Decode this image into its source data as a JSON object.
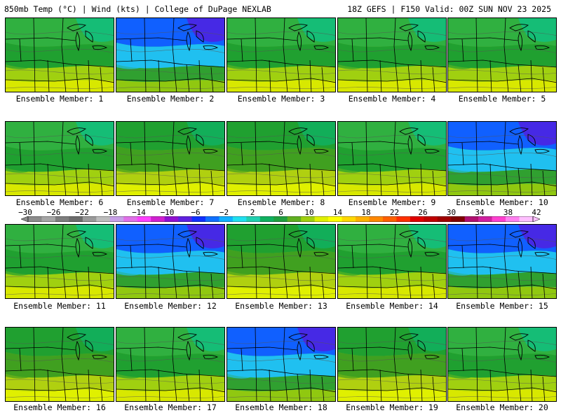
{
  "header": {
    "title": "850mb Temp (°C) | Wind (kts) | College of DuPage NEXLAB",
    "run_info": "18Z GEFS | F150 Valid: 00Z SUN NOV 23 2025"
  },
  "legend": {
    "ticks": [
      "−30",
      "−26",
      "−22",
      "−18",
      "−14",
      "−10",
      "−6",
      "−2",
      "2",
      "6",
      "10",
      "14",
      "18",
      "22",
      "26",
      "30",
      "34",
      "38",
      "42"
    ],
    "colors": [
      "#8c8c8c",
      "#a6a6a6",
      "#7e7e7e",
      "#6c6c6c",
      "#9a9a9a",
      "#bdbdbd",
      "#c8a0e8",
      "#e070e8",
      "#ff40ff",
      "#d020d0",
      "#9010d0",
      "#6020e0",
      "#1030ff",
      "#1070ff",
      "#10b0ff",
      "#20e0f0",
      "#20d0b0",
      "#10b060",
      "#20a040",
      "#60b020",
      "#a0d010",
      "#e0f000",
      "#ffff00",
      "#ffd800",
      "#ffb000",
      "#ff8800",
      "#ff6000",
      "#ff3000",
      "#e00000",
      "#c00000",
      "#a00000",
      "#800000",
      "#b01070",
      "#d020a0",
      "#ff40d0",
      "#ff80f0",
      "#ffc0ff"
    ]
  },
  "members": [
    {
      "label": "Ensemble Member: 1",
      "pal": "n"
    },
    {
      "label": "Ensemble Member: 2",
      "pal": "c"
    },
    {
      "label": "Ensemble Member: 3",
      "pal": "n"
    },
    {
      "label": "Ensemble Member: 4",
      "pal": "n"
    },
    {
      "label": "Ensemble Member: 5",
      "pal": "n"
    },
    {
      "label": "Ensemble Member: 6",
      "pal": "n"
    },
    {
      "label": "Ensemble Member: 7",
      "pal": "g"
    },
    {
      "label": "Ensemble Member: 8",
      "pal": "g"
    },
    {
      "label": "Ensemble Member: 9",
      "pal": "n"
    },
    {
      "label": "Ensemble Member: 10",
      "pal": "c"
    },
    {
      "label": "Ensemble Member: 11",
      "pal": "n"
    },
    {
      "label": "Ensemble Member: 12",
      "pal": "c"
    },
    {
      "label": "Ensemble Member: 13",
      "pal": "g"
    },
    {
      "label": "Ensemble Member: 14",
      "pal": "n"
    },
    {
      "label": "Ensemble Member: 15",
      "pal": "c"
    },
    {
      "label": "Ensemble Member: 16",
      "pal": "g"
    },
    {
      "label": "Ensemble Member: 17",
      "pal": "n"
    },
    {
      "label": "Ensemble Member: 18",
      "pal": "c"
    },
    {
      "label": "Ensemble Member: 19",
      "pal": "g"
    },
    {
      "label": "Ensemble Member: 20",
      "pal": "n"
    }
  ],
  "palettes": {
    "n": [
      "#10c080",
      "#30b040",
      "#20a030",
      "#60b020",
      "#a0d010",
      "#d8e800"
    ],
    "c": [
      "#5020e0",
      "#1060ff",
      "#20c0f0",
      "#10c080",
      "#30a030",
      "#90c810"
    ],
    "g": [
      "#10b060",
      "#20a030",
      "#40a020",
      "#70b818",
      "#b0d010",
      "#e0f000"
    ]
  }
}
